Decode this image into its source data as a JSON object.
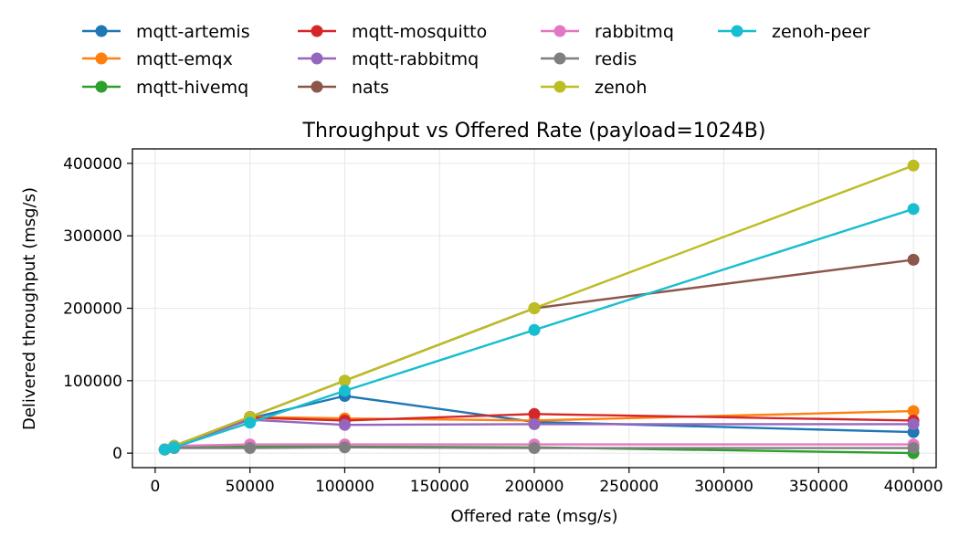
{
  "chart_data": {
    "type": "line",
    "title": "Throughput vs Offered Rate (payload=1024B)",
    "xlabel": "Offered rate (msg/s)",
    "ylabel": "Delivered throughput (msg/s)",
    "xlim": [
      -12000,
      412000
    ],
    "ylim": [
      -20000,
      420000
    ],
    "x_ticks": [
      0,
      50000,
      100000,
      150000,
      200000,
      250000,
      300000,
      350000,
      400000
    ],
    "y_ticks": [
      0,
      100000,
      200000,
      300000,
      400000
    ],
    "x_tick_labels": [
      "0",
      "50000",
      "100000",
      "150000",
      "200000",
      "250000",
      "300000",
      "350000",
      "400000"
    ],
    "y_tick_labels": [
      "0",
      "100000",
      "200000",
      "300000",
      "400000"
    ],
    "grid": true,
    "legend_position": "above plot, 4 columns",
    "x": [
      5000,
      10000,
      50000,
      100000,
      200000,
      400000
    ],
    "series": [
      {
        "name": "mqtt-artemis",
        "color": "#1f77b4",
        "values": [
          5000,
          10000,
          48000,
          79000,
          43000,
          29000
        ]
      },
      {
        "name": "mqtt-emqx",
        "color": "#ff7f0e",
        "values": [
          5000,
          10000,
          50000,
          48000,
          45000,
          58000
        ]
      },
      {
        "name": "mqtt-hivemq",
        "color": "#2ca02c",
        "values": [
          5000,
          8000,
          9000,
          9000,
          8000,
          0
        ]
      },
      {
        "name": "mqtt-mosquitto",
        "color": "#d62728",
        "values": [
          5000,
          10000,
          49000,
          45000,
          54000,
          45000
        ]
      },
      {
        "name": "mqtt-rabbitmq",
        "color": "#9467bd",
        "values": [
          5000,
          10000,
          46000,
          39000,
          40000,
          40000
        ]
      },
      {
        "name": "nats",
        "color": "#8c564b",
        "values": [
          5000,
          10000,
          50000,
          100000,
          200000,
          267000
        ]
      },
      {
        "name": "rabbitmq",
        "color": "#e377c2",
        "values": [
          5000,
          10000,
          12000,
          12000,
          12000,
          12000
        ]
      },
      {
        "name": "redis",
        "color": "#7f7f7f",
        "values": [
          5000,
          7000,
          7000,
          8000,
          7000,
          7000
        ]
      },
      {
        "name": "zenoh",
        "color": "#bcbd22",
        "values": [
          5000,
          10000,
          50000,
          100000,
          200000,
          397000
        ]
      },
      {
        "name": "zenoh-peer",
        "color": "#17becf",
        "values": [
          5000,
          8000,
          42000,
          86000,
          170000,
          337000
        ]
      }
    ]
  }
}
